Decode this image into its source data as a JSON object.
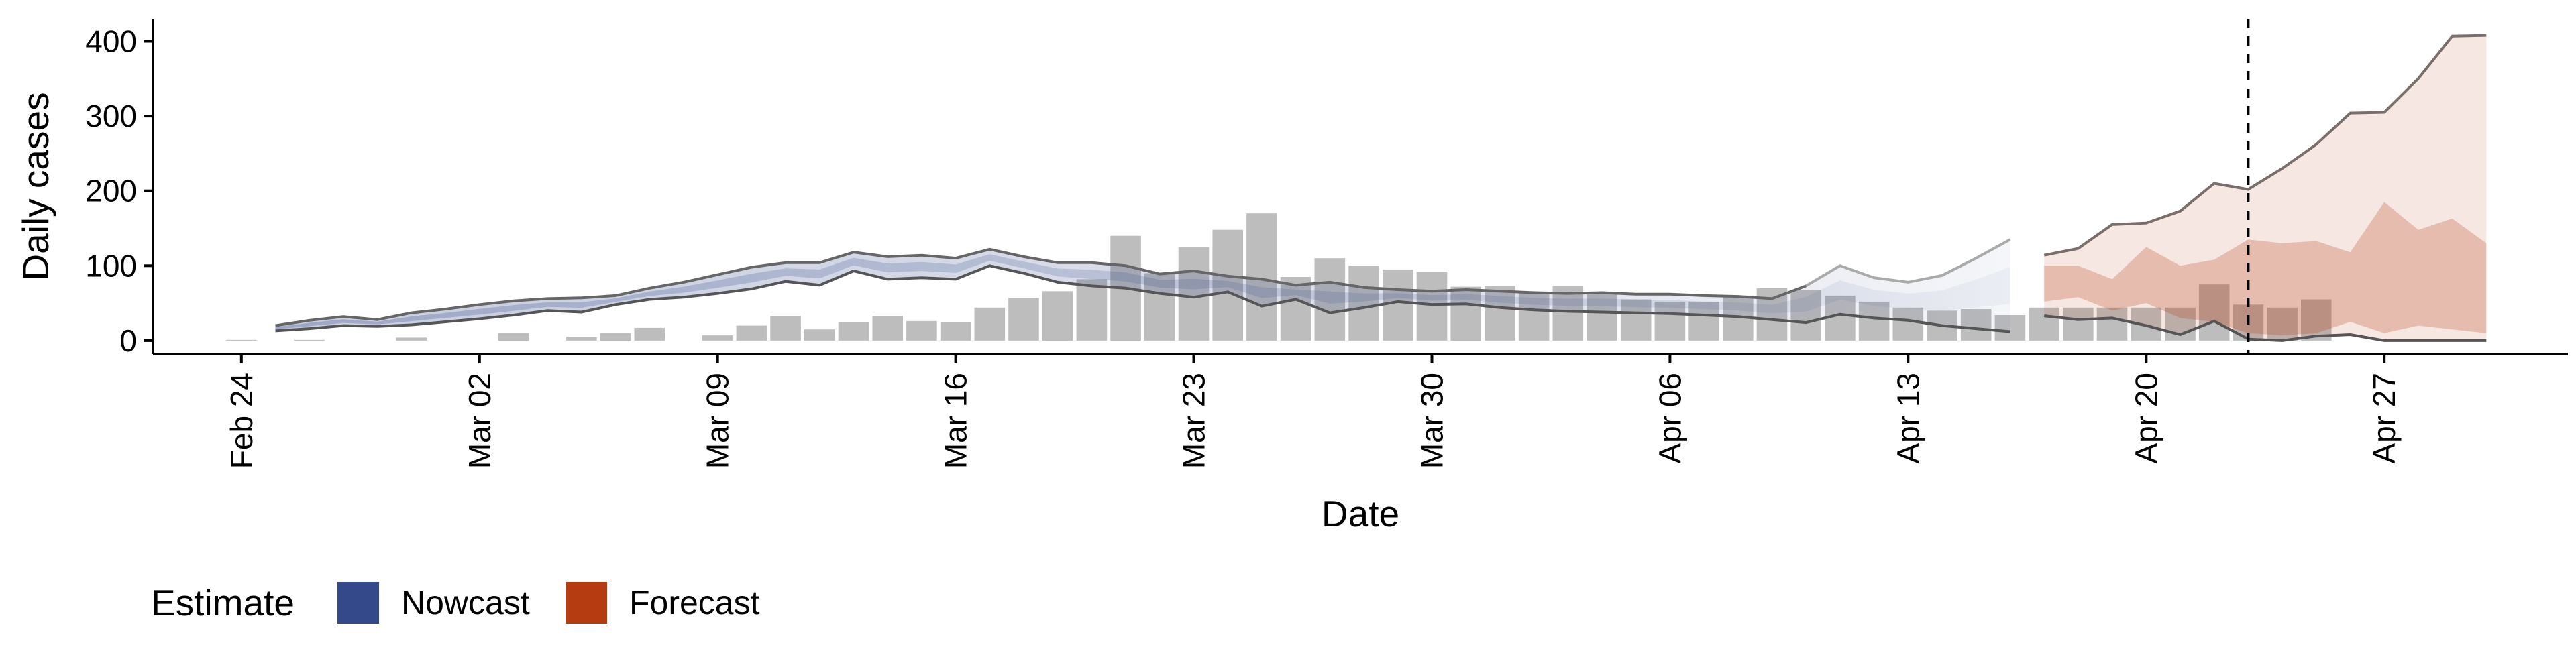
{
  "chart_data": {
    "type": "bar",
    "xlabel": "Date",
    "ylabel": "Daily cases",
    "ylim": [
      -18,
      430
    ],
    "x_tick_labels": [
      "Feb 24",
      "Mar 02",
      "Mar 09",
      "Mar 16",
      "Mar 23",
      "Mar 30",
      "Apr 06",
      "Apr 13",
      "Apr 20",
      "Apr 27"
    ],
    "x_ticks_day_offset": [
      0,
      7,
      14,
      21,
      28,
      35,
      42,
      49,
      56,
      63
    ],
    "y_ticks": [
      0,
      100,
      200,
      300,
      400
    ],
    "x_range_day_offset": [
      -2.6,
      68.4
    ],
    "forecast_start_day_offset": 59.0,
    "grid": false,
    "legend": {
      "title": "Estimate",
      "placement": "bottom-left",
      "entries": [
        {
          "label": "Nowcast",
          "color": "#34498a"
        },
        {
          "label": "Forecast",
          "color": "#b53b10"
        }
      ]
    },
    "observed_cases": {
      "start_date": "Feb 24",
      "bar_color": "#bdbdbd",
      "values": [
        1,
        0,
        1,
        0,
        0,
        4,
        0,
        0,
        10,
        0,
        5,
        10,
        17,
        0,
        7,
        20,
        33,
        15,
        25,
        33,
        26,
        25,
        44,
        57,
        66,
        82,
        140,
        90,
        125,
        148,
        170,
        85,
        110,
        100,
        95,
        92,
        72,
        73,
        65,
        73,
        62,
        55,
        52,
        52,
        60,
        70,
        68,
        60,
        52,
        44,
        40,
        42,
        34,
        44,
        44,
        44,
        44,
        44,
        75,
        48,
        44,
        55,
        0,
        0,
        0,
        0,
        0
      ]
    },
    "nowcast": {
      "series_color": "#34498a",
      "start_date": "Feb 25",
      "upper": [
        20,
        27,
        32,
        28,
        37,
        42,
        48,
        53,
        56,
        57,
        60,
        70,
        78,
        88,
        98,
        104,
        104,
        118,
        112,
        114,
        110,
        122,
        112,
        104,
        104,
        100,
        89,
        93,
        86,
        82,
        74,
        78,
        71,
        68,
        66,
        68,
        66,
        64,
        63,
        64,
        62,
        62,
        60,
        59,
        56,
        73,
        100,
        84,
        78,
        87,
        110,
        135
      ],
      "lower": [
        13,
        16,
        20,
        19,
        21,
        25,
        29,
        34,
        40,
        38,
        48,
        55,
        58,
        63,
        69,
        79,
        74,
        93,
        82,
        84,
        82,
        100,
        90,
        78,
        73,
        70,
        63,
        58,
        65,
        46,
        55,
        37,
        44,
        52,
        48,
        49,
        44,
        41,
        39,
        38,
        37,
        36,
        34,
        32,
        28,
        24,
        35,
        30,
        27,
        20,
        16,
        12
      ]
    },
    "forecast": {
      "series_color": "#b53b10",
      "start_date": "Apr 17",
      "upper": [
        114,
        123,
        155,
        157,
        173,
        210,
        202,
        230,
        262,
        304,
        305,
        350,
        407,
        408
      ],
      "inner_upper": [
        100,
        100,
        82,
        125,
        100,
        108,
        135,
        130,
        133,
        118,
        185,
        148,
        163,
        130
      ],
      "inner_lower": [
        52,
        58,
        40,
        50,
        30,
        25,
        10,
        7,
        10,
        25,
        10,
        20,
        15,
        10
      ],
      "lower": [
        33,
        28,
        30,
        20,
        8,
        26,
        2,
        0,
        6,
        8,
        0,
        0,
        0,
        0
      ]
    }
  }
}
